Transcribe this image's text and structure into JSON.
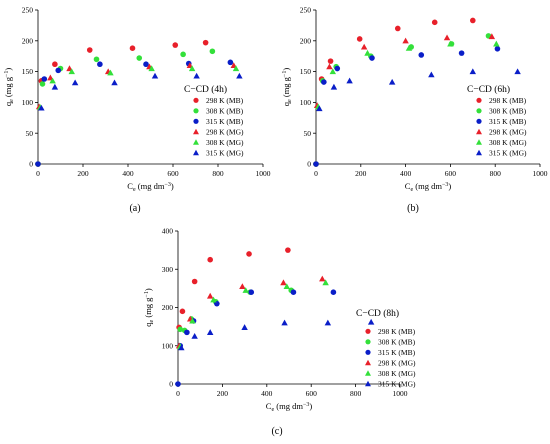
{
  "figure": {
    "panels": [
      {
        "label": "(a)",
        "title": "C−CD (4h)"
      },
      {
        "label": "(b)",
        "title": "C−CD (6h)"
      },
      {
        "label": "(c)",
        "title": "C−CD (8h)"
      }
    ]
  },
  "colors": {
    "red": "#e8202a",
    "green": "#33e03a",
    "blue": "#0a1ec8"
  },
  "chart_data": [
    {
      "type": "scatter",
      "title": "C−CD (4h)",
      "panel_label": "(a)",
      "xlabel": "Ce (mg dm⁻³)",
      "ylabel": "qe (mg g⁻¹)",
      "xlim": [
        0,
        1000
      ],
      "ylim": [
        0,
        250
      ],
      "xticks": [
        0,
        200,
        400,
        600,
        800,
        1000
      ],
      "yticks": [
        0,
        50,
        100,
        150,
        200,
        250
      ],
      "legend_position": "right",
      "series": [
        {
          "name": "298 K (MB)",
          "marker": "circle",
          "color": "red",
          "x": [
            0,
            15,
            75,
            230,
            420,
            610,
            745
          ],
          "y": [
            0,
            135,
            162,
            185,
            188,
            193,
            197
          ]
        },
        {
          "name": "308 K (MB)",
          "marker": "circle",
          "color": "green",
          "x": [
            0,
            20,
            100,
            260,
            450,
            645,
            775
          ],
          "y": [
            0,
            130,
            155,
            170,
            172,
            178,
            183
          ]
        },
        {
          "name": "315 K (MB)",
          "marker": "circle",
          "color": "blue",
          "x": [
            0,
            28,
            90,
            275,
            480,
            670,
            855
          ],
          "y": [
            0,
            138,
            152,
            162,
            162,
            163,
            165
          ]
        },
        {
          "name": "298 K (MG)",
          "marker": "triangle",
          "color": "red",
          "x": [
            5,
            55,
            140,
            312,
            495,
            675,
            870
          ],
          "y": [
            93,
            140,
            155,
            150,
            158,
            160,
            160
          ]
        },
        {
          "name": "308 K (MG)",
          "marker": "triangle",
          "color": "green",
          "x": [
            10,
            65,
            150,
            322,
            505,
            685,
            880
          ],
          "y": [
            92,
            135,
            150,
            148,
            155,
            155,
            155
          ]
        },
        {
          "name": "315 K (MG)",
          "marker": "triangle",
          "color": "blue",
          "x": [
            15,
            75,
            165,
            340,
            520,
            705,
            895
          ],
          "y": [
            91,
            125,
            132,
            132,
            143,
            143,
            143
          ]
        }
      ]
    },
    {
      "type": "scatter",
      "title": "C−CD (6h)",
      "panel_label": "(b)",
      "xlabel": "Ce (mg dm⁻³)",
      "ylabel": "qe (mg g⁻¹)",
      "xlim": [
        0,
        1000
      ],
      "ylim": [
        0,
        250
      ],
      "xticks": [
        0,
        200,
        400,
        600,
        800,
        1000
      ],
      "yticks": [
        0,
        50,
        100,
        150,
        200,
        250
      ],
      "legend_position": "right",
      "series": [
        {
          "name": "298 K (MB)",
          "marker": "circle",
          "color": "red",
          "x": [
            0,
            25,
            65,
            195,
            365,
            530,
            700
          ],
          "y": [
            0,
            138,
            167,
            203,
            220,
            230,
            233
          ]
        },
        {
          "name": "308 K (MB)",
          "marker": "circle",
          "color": "green",
          "x": [
            0,
            30,
            90,
            245,
            425,
            605,
            770
          ],
          "y": [
            0,
            135,
            158,
            175,
            190,
            195,
            208
          ]
        },
        {
          "name": "315 K (MB)",
          "marker": "circle",
          "color": "blue",
          "x": [
            0,
            35,
            95,
            250,
            470,
            650,
            810
          ],
          "y": [
            0,
            133,
            155,
            172,
            177,
            180,
            187
          ]
        },
        {
          "name": "298 K (MG)",
          "marker": "triangle",
          "color": "red",
          "x": [
            5,
            60,
            215,
            400,
            585,
            785
          ],
          "y": [
            95,
            158,
            190,
            200,
            205,
            207
          ]
        },
        {
          "name": "308 K (MG)",
          "marker": "triangle",
          "color": "green",
          "x": [
            10,
            75,
            230,
            415,
            600,
            805
          ],
          "y": [
            93,
            150,
            180,
            188,
            195,
            195
          ]
        },
        {
          "name": "315 K (MG)",
          "marker": "triangle",
          "color": "blue",
          "x": [
            15,
            80,
            150,
            340,
            515,
            700,
            900
          ],
          "y": [
            90,
            125,
            135,
            133,
            145,
            150,
            150
          ]
        }
      ]
    },
    {
      "type": "scatter",
      "title": "C−CD (8h)",
      "panel_label": "(c)",
      "xlabel": "Ce (mg dm⁻³)",
      "ylabel": "qe (mg g⁻¹)",
      "xlim": [
        0,
        1000
      ],
      "ylim": [
        0,
        400
      ],
      "xticks": [
        0,
        200,
        400,
        600,
        800,
        1000
      ],
      "yticks": [
        0,
        100,
        200,
        300,
        400
      ],
      "legend_position": "right",
      "series": [
        {
          "name": "298 K (MB)",
          "marker": "circle",
          "color": "red",
          "x": [
            5,
            20,
            75,
            145,
            320,
            495
          ],
          "y": [
            148,
            190,
            268,
            325,
            340,
            350
          ]
        },
        {
          "name": "308 K (MB)",
          "marker": "circle",
          "color": "green",
          "x": [
            10,
            30,
            60,
            170,
            325,
            510
          ],
          "y": [
            143,
            140,
            170,
            215,
            240,
            245
          ]
        },
        {
          "name": "315 K (MB)",
          "marker": "circle",
          "color": "blue",
          "x": [
            0,
            10,
            40,
            70,
            175,
            330,
            520,
            700
          ],
          "y": [
            0,
            100,
            135,
            165,
            210,
            240,
            240,
            240
          ]
        },
        {
          "name": "298 K (MG)",
          "marker": "triangle",
          "color": "red",
          "x": [
            5,
            55,
            145,
            290,
            475,
            650
          ],
          "y": [
            100,
            170,
            230,
            255,
            265,
            275
          ]
        },
        {
          "name": "308 K (MG)",
          "marker": "triangle",
          "color": "green",
          "x": [
            10,
            65,
            160,
            305,
            490,
            665
          ],
          "y": [
            98,
            165,
            220,
            245,
            255,
            265
          ]
        },
        {
          "name": "315 K (MG)",
          "marker": "triangle",
          "color": "blue",
          "x": [
            15,
            75,
            145,
            300,
            480,
            675,
            870
          ],
          "y": [
            95,
            125,
            135,
            148,
            160,
            160,
            162
          ]
        }
      ]
    }
  ]
}
